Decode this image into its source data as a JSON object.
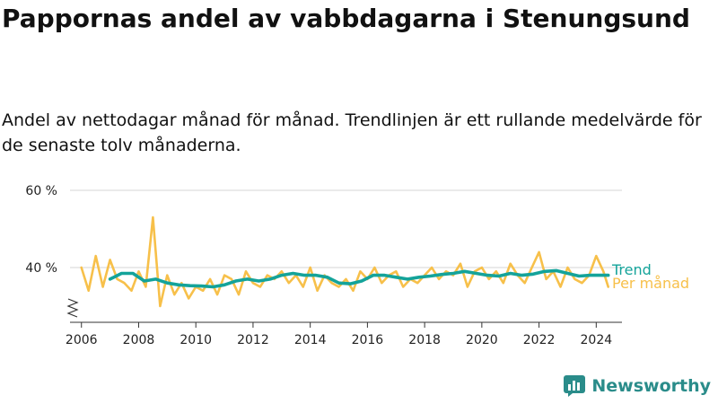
{
  "title": "Pappornas andel av vabbdagarna i Stenungsund",
  "subtitle": "Andel av nettodagar månad för månad. Trendlinjen är ett rullande medelvärde för de senaste tolv månaderna.",
  "brand": {
    "name": "Newsworthy",
    "icon": "newsworthy-logo-icon"
  },
  "colors": {
    "monthly": "#f7c04a",
    "trend": "#14a39a",
    "grid": "#dddddd",
    "axis": "#333333"
  },
  "chart_data": {
    "type": "line",
    "xlabel": "",
    "ylabel": "",
    "y_axis_break": true,
    "grid": true,
    "legend": "right, at line ends",
    "xlim": [
      2005.6,
      2024.9
    ],
    "ylim": [
      25,
      60
    ],
    "x_ticks": [
      2006,
      2008,
      2010,
      2012,
      2014,
      2016,
      2018,
      2020,
      2022,
      2024
    ],
    "x_tick_labels": [
      "2006",
      "2008",
      "2010",
      "2012",
      "2014",
      "2016",
      "2018",
      "2020",
      "2022",
      "2024"
    ],
    "y_ticks": [
      40,
      60
    ],
    "y_tick_labels": [
      "40 %",
      "60 %"
    ],
    "series": [
      {
        "name": "Per månad",
        "color": "#f7c04a",
        "x": [
          2006.0,
          2006.25,
          2006.5,
          2006.75,
          2007.0,
          2007.25,
          2007.5,
          2007.75,
          2008.0,
          2008.25,
          2008.5,
          2008.75,
          2009.0,
          2009.25,
          2009.5,
          2009.75,
          2010.0,
          2010.25,
          2010.5,
          2010.75,
          2011.0,
          2011.25,
          2011.5,
          2011.75,
          2012.0,
          2012.25,
          2012.5,
          2012.75,
          2013.0,
          2013.25,
          2013.5,
          2013.75,
          2014.0,
          2014.25,
          2014.5,
          2014.75,
          2015.0,
          2015.25,
          2015.5,
          2015.75,
          2016.0,
          2016.25,
          2016.5,
          2016.75,
          2017.0,
          2017.25,
          2017.5,
          2017.75,
          2018.0,
          2018.25,
          2018.5,
          2018.75,
          2019.0,
          2019.25,
          2019.5,
          2019.75,
          2020.0,
          2020.25,
          2020.5,
          2020.75,
          2021.0,
          2021.25,
          2021.5,
          2021.75,
          2022.0,
          2022.25,
          2022.5,
          2022.75,
          2023.0,
          2023.25,
          2023.5,
          2023.75,
          2024.0,
          2024.25,
          2024.42
        ],
        "values": [
          40,
          34,
          43,
          35,
          42,
          37,
          36,
          34,
          39,
          35,
          53,
          30,
          38,
          33,
          36,
          32,
          35,
          34,
          37,
          33,
          38,
          37,
          33,
          39,
          36,
          35,
          38,
          37,
          39,
          36,
          38,
          35,
          40,
          34,
          38,
          36,
          35,
          37,
          34,
          39,
          37,
          40,
          36,
          38,
          39,
          35,
          37,
          36,
          38,
          40,
          37,
          39,
          38,
          41,
          35,
          39,
          40,
          37,
          39,
          36,
          41,
          38,
          36,
          40,
          44,
          37,
          39,
          35,
          40,
          37,
          36,
          38,
          43,
          39,
          35
        ]
      },
      {
        "name": "Trend",
        "color": "#14a39a",
        "x": [
          2007.0,
          2007.4,
          2007.8,
          2008.2,
          2008.6,
          2009.0,
          2009.4,
          2009.8,
          2010.2,
          2010.6,
          2011.0,
          2011.4,
          2011.8,
          2012.2,
          2012.6,
          2013.0,
          2013.4,
          2013.8,
          2014.2,
          2014.6,
          2015.0,
          2015.4,
          2015.8,
          2016.2,
          2016.6,
          2017.0,
          2017.4,
          2017.8,
          2018.2,
          2018.6,
          2019.0,
          2019.4,
          2019.8,
          2020.2,
          2020.6,
          2021.0,
          2021.4,
          2021.8,
          2022.2,
          2022.6,
          2023.0,
          2023.4,
          2023.8,
          2024.2,
          2024.42
        ],
        "values": [
          37,
          38.5,
          38.5,
          36.5,
          37,
          36,
          35.5,
          35.3,
          35.2,
          35,
          35.5,
          36.5,
          37,
          36.5,
          37,
          38,
          38.5,
          38,
          38,
          37.5,
          36,
          35.8,
          36.5,
          38,
          38,
          37.5,
          37,
          37.5,
          37.8,
          38.2,
          38.5,
          39,
          38.5,
          38,
          37.8,
          38.5,
          38,
          38.3,
          39,
          39.2,
          38.5,
          37.8,
          38,
          38,
          38
        ]
      }
    ]
  }
}
